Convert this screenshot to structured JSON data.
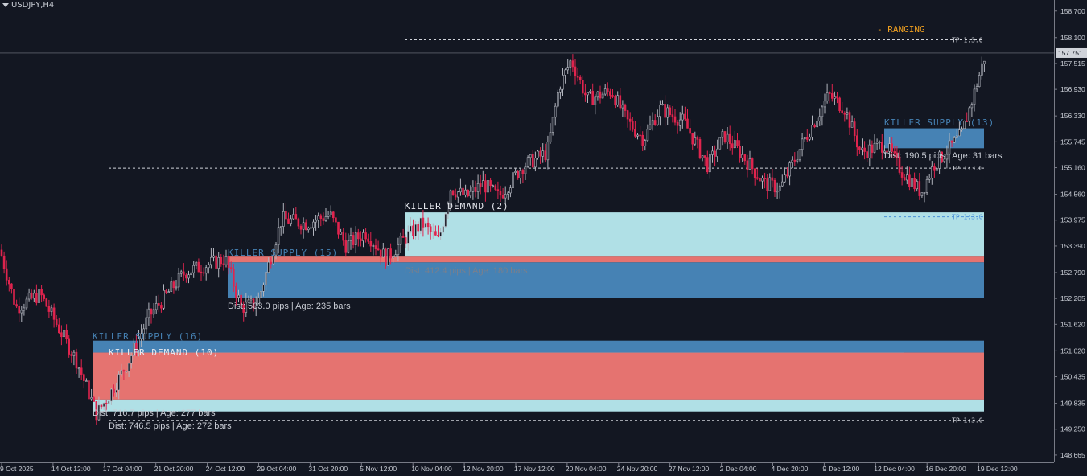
{
  "header": {
    "symbol": "USDJPY,H4"
  },
  "status": {
    "label": "- RANGING",
    "color": "#f0a020"
  },
  "colors": {
    "background": "#131722",
    "axis_text": "#c8ccd4",
    "bull": "#b2b5be",
    "bear": "#e0244e",
    "supply": "#4682b4",
    "demand_fill": "#e57370",
    "light": "#b0e0e6"
  },
  "chart_data": {
    "type": "candlestick",
    "y_axis": {
      "ticks": [
        148.665,
        149.25,
        149.835,
        150.435,
        151.02,
        151.62,
        152.205,
        152.79,
        153.39,
        153.975,
        154.56,
        155.16,
        155.745,
        156.33,
        156.93,
        157.515,
        158.1,
        158.7
      ],
      "range": [
        148.5,
        158.95
      ]
    },
    "current_price": "157.751",
    "x_labels": [
      "9 Oct 2025",
      "14 Oct 12:00",
      "17 Oct 04:00",
      "21 Oct 20:00",
      "24 Oct 12:00",
      "29 Oct 04:00",
      "31 Oct 20:00",
      "5 Nov 12:00",
      "10 Nov 04:00",
      "12 Nov 20:00",
      "17 Nov 12:00",
      "20 Nov 04:00",
      "24 Nov 20:00",
      "27 Nov 12:00",
      "2 Dec 04:00",
      "4 Dec 20:00",
      "9 Dec 12:00",
      "12 Dec 04:00",
      "16 Dec 20:00",
      "19 Dec 12:00"
    ],
    "price_path": [
      [
        0,
        153.3
      ],
      [
        20,
        152.0
      ],
      [
        50,
        152.3
      ],
      [
        95,
        150.8
      ],
      [
        120,
        149.6
      ],
      [
        135,
        150.0
      ],
      [
        160,
        150.8
      ],
      [
        185,
        151.8
      ],
      [
        230,
        152.8
      ],
      [
        280,
        153.1
      ],
      [
        300,
        152.0
      ],
      [
        320,
        152.1
      ],
      [
        350,
        154.0
      ],
      [
        380,
        153.9
      ],
      [
        410,
        154.1
      ],
      [
        430,
        153.4
      ],
      [
        455,
        153.7
      ],
      [
        480,
        153.1
      ],
      [
        505,
        153.6
      ],
      [
        525,
        153.9
      ],
      [
        545,
        153.5
      ],
      [
        560,
        154.7
      ],
      [
        580,
        154.5
      ],
      [
        600,
        154.8
      ],
      [
        620,
        154.5
      ],
      [
        650,
        155.2
      ],
      [
        680,
        155.5
      ],
      [
        695,
        157.0
      ],
      [
        710,
        157.6
      ],
      [
        730,
        156.7
      ],
      [
        760,
        156.9
      ],
      [
        780,
        156.2
      ],
      [
        800,
        155.8
      ],
      [
        820,
        156.5
      ],
      [
        850,
        156.2
      ],
      [
        880,
        155.2
      ],
      [
        900,
        155.9
      ],
      [
        920,
        155.5
      ],
      [
        950,
        154.8
      ],
      [
        970,
        154.7
      ],
      [
        1000,
        155.8
      ],
      [
        1030,
        156.8
      ],
      [
        1050,
        156.5
      ],
      [
        1070,
        155.5
      ],
      [
        1085,
        155.6
      ],
      [
        1100,
        155.7
      ],
      [
        1120,
        155.1
      ],
      [
        1145,
        154.6
      ],
      [
        1160,
        155.2
      ],
      [
        1180,
        155.6
      ],
      [
        1195,
        155.9
      ],
      [
        1210,
        156.8
      ],
      [
        1225,
        157.75
      ]
    ],
    "zones": [
      {
        "title": "KILLER SUPPLY (16)",
        "info": "Dist: 716.7 pips | Age: 277 bars",
        "type": "supply",
        "top": 151.2,
        "bottom": 149.75,
        "bands": [
          {
            "from": 151.2,
            "to": 150.95,
            "color": "supply"
          },
          {
            "from": 150.95,
            "to": 149.9,
            "color": "demand_fill"
          },
          {
            "from": 149.9,
            "to": 149.6,
            "color": "light"
          }
        ]
      },
      {
        "title": "KILLER DEMAND (10)",
        "info": "Dist: 746.5 pips | Age: 272 bars",
        "type": "demand"
      },
      {
        "title": "KILLER SUPPLY (15)",
        "info": "Dist: 503.0 pips | Age: 235 bars",
        "type": "supply"
      },
      {
        "title": "KILLER DEMAND (2)",
        "info": "Dist: 412.4 pips | Age: 180 bars",
        "type": "demand"
      },
      {
        "title": "KILLER SUPPLY (13)",
        "info": "Dist: 190.5 pips | Age: 31 bars",
        "type": "supply"
      }
    ],
    "tp_label": "TP 1:3.0",
    "tp_levels": [
      158.05,
      155.15,
      154.05,
      149.45
    ]
  }
}
